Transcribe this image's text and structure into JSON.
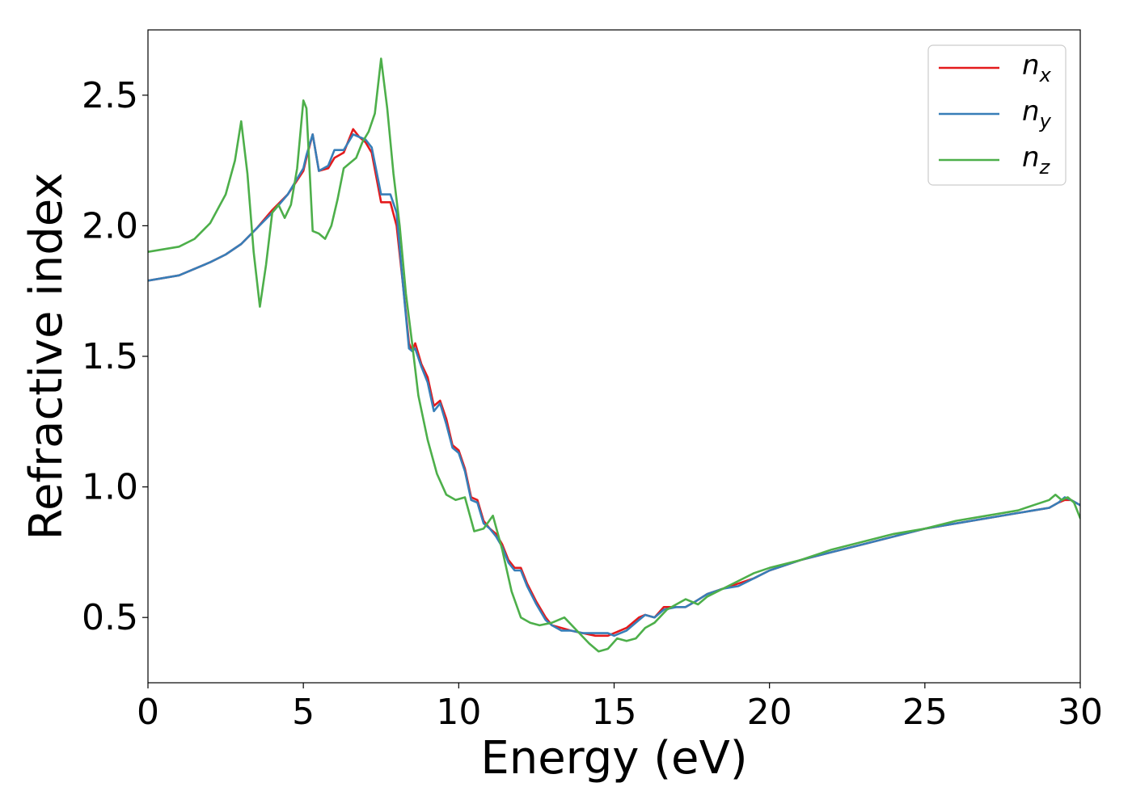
{
  "chart_data": {
    "type": "line",
    "xlabel": "Energy (eV)",
    "ylabel": "Refractive index",
    "xlim": [
      0,
      30
    ],
    "ylim": [
      0.25,
      2.75
    ],
    "xticks": [
      "0",
      "5",
      "10",
      "15",
      "20",
      "25",
      "30"
    ],
    "yticks": [
      "0.5",
      "1.0",
      "1.5",
      "2.0",
      "2.5"
    ],
    "grid": false,
    "legend_position": "upper right",
    "series": [
      {
        "name": "n_x",
        "legend": {
          "base": "n",
          "sub": "x"
        },
        "color": "#e41a1c",
        "x": [
          0,
          1,
          2,
          2.5,
          3,
          3.5,
          4,
          4.5,
          5,
          5.1,
          5.3,
          5.5,
          5.8,
          6.0,
          6.3,
          6.6,
          6.8,
          7.0,
          7.2,
          7.5,
          7.8,
          8.0,
          8.2,
          8.4,
          8.5,
          8.6,
          8.8,
          9.0,
          9.2,
          9.4,
          9.6,
          9.8,
          10.0,
          10.2,
          10.4,
          10.6,
          10.8,
          11.0,
          11.2,
          11.4,
          11.6,
          11.8,
          12.0,
          12.2,
          12.5,
          12.8,
          13.0,
          13.3,
          13.6,
          14.0,
          14.4,
          14.8,
          15.0,
          15.4,
          15.8,
          16.0,
          16.3,
          16.6,
          17.0,
          17.3,
          17.6,
          18.0,
          18.5,
          19.0,
          19.5,
          20.0,
          21.0,
          22.0,
          23.0,
          24.0,
          25.0,
          26.0,
          27.0,
          28.0,
          28.5,
          29.0,
          29.3,
          29.5,
          29.7,
          30.0
        ],
        "y": [
          1.79,
          1.81,
          1.86,
          1.89,
          1.93,
          1.99,
          2.06,
          2.12,
          2.21,
          2.26,
          2.35,
          2.21,
          2.22,
          2.26,
          2.28,
          2.37,
          2.34,
          2.32,
          2.28,
          2.09,
          2.09,
          2.0,
          1.78,
          1.55,
          1.52,
          1.55,
          1.47,
          1.42,
          1.31,
          1.33,
          1.26,
          1.16,
          1.14,
          1.07,
          0.96,
          0.95,
          0.87,
          0.84,
          0.82,
          0.78,
          0.72,
          0.69,
          0.69,
          0.63,
          0.56,
          0.5,
          0.47,
          0.46,
          0.45,
          0.44,
          0.43,
          0.43,
          0.44,
          0.46,
          0.5,
          0.51,
          0.5,
          0.54,
          0.54,
          0.54,
          0.56,
          0.59,
          0.61,
          0.63,
          0.65,
          0.68,
          0.72,
          0.75,
          0.78,
          0.81,
          0.84,
          0.86,
          0.88,
          0.9,
          0.91,
          0.92,
          0.94,
          0.95,
          0.95,
          0.93
        ]
      },
      {
        "name": "n_y",
        "legend": {
          "base": "n",
          "sub": "y"
        },
        "color": "#377eb8",
        "x": [
          0,
          1,
          2,
          2.5,
          3,
          3.5,
          4,
          4.5,
          5,
          5.1,
          5.3,
          5.5,
          5.8,
          6.0,
          6.3,
          6.6,
          6.8,
          7.0,
          7.2,
          7.5,
          7.8,
          8.0,
          8.2,
          8.4,
          8.5,
          8.6,
          8.8,
          9.0,
          9.2,
          9.4,
          9.6,
          9.8,
          10.0,
          10.2,
          10.4,
          10.6,
          10.8,
          11.0,
          11.2,
          11.4,
          11.6,
          11.8,
          12.0,
          12.2,
          12.5,
          12.8,
          13.0,
          13.3,
          13.6,
          14.0,
          14.4,
          14.8,
          15.0,
          15.4,
          15.8,
          16.0,
          16.3,
          16.6,
          17.0,
          17.3,
          17.6,
          18.0,
          18.5,
          19.0,
          19.5,
          20.0,
          21.0,
          22.0,
          23.0,
          24.0,
          25.0,
          26.0,
          27.0,
          28.0,
          28.5,
          29.0,
          29.3,
          29.5,
          29.7,
          30.0
        ],
        "y": [
          1.79,
          1.81,
          1.86,
          1.89,
          1.93,
          1.99,
          2.05,
          2.12,
          2.22,
          2.27,
          2.35,
          2.21,
          2.23,
          2.29,
          2.29,
          2.35,
          2.34,
          2.33,
          2.3,
          2.12,
          2.12,
          2.05,
          1.78,
          1.53,
          1.52,
          1.53,
          1.46,
          1.4,
          1.29,
          1.32,
          1.24,
          1.15,
          1.13,
          1.06,
          0.95,
          0.94,
          0.86,
          0.84,
          0.81,
          0.77,
          0.71,
          0.68,
          0.68,
          0.62,
          0.55,
          0.49,
          0.47,
          0.45,
          0.45,
          0.44,
          0.44,
          0.44,
          0.43,
          0.45,
          0.49,
          0.51,
          0.5,
          0.53,
          0.54,
          0.54,
          0.56,
          0.59,
          0.61,
          0.62,
          0.65,
          0.68,
          0.72,
          0.75,
          0.78,
          0.81,
          0.84,
          0.86,
          0.88,
          0.9,
          0.91,
          0.92,
          0.94,
          0.96,
          0.95,
          0.93
        ]
      },
      {
        "name": "n_z",
        "legend": {
          "base": "n",
          "sub": "z"
        },
        "color": "#4daf4a",
        "x": [
          0,
          1,
          1.5,
          2,
          2.5,
          2.8,
          3.0,
          3.2,
          3.4,
          3.6,
          3.8,
          4.0,
          4.2,
          4.4,
          4.6,
          4.8,
          5.0,
          5.1,
          5.3,
          5.5,
          5.7,
          5.9,
          6.1,
          6.3,
          6.5,
          6.7,
          6.9,
          7.1,
          7.3,
          7.5,
          7.7,
          7.9,
          8.1,
          8.3,
          8.5,
          8.7,
          9.0,
          9.3,
          9.6,
          9.9,
          10.2,
          10.5,
          10.8,
          11.1,
          11.4,
          11.7,
          12.0,
          12.3,
          12.6,
          13.0,
          13.4,
          13.8,
          14.2,
          14.5,
          14.8,
          15.1,
          15.4,
          15.7,
          16.0,
          16.3,
          16.7,
          17.0,
          17.3,
          17.7,
          18.0,
          18.5,
          19.0,
          19.5,
          20.0,
          21.0,
          22.0,
          23.0,
          24.0,
          25.0,
          26.0,
          27.0,
          28.0,
          28.5,
          29.0,
          29.2,
          29.4,
          29.6,
          29.8,
          30.0
        ],
        "y": [
          1.9,
          1.92,
          1.95,
          2.01,
          2.12,
          2.25,
          2.4,
          2.2,
          1.9,
          1.69,
          1.85,
          2.05,
          2.08,
          2.03,
          2.08,
          2.22,
          2.48,
          2.45,
          1.98,
          1.97,
          1.95,
          2.0,
          2.1,
          2.22,
          2.24,
          2.26,
          2.32,
          2.36,
          2.43,
          2.64,
          2.45,
          2.2,
          2.0,
          1.74,
          1.55,
          1.35,
          1.18,
          1.05,
          0.97,
          0.95,
          0.96,
          0.83,
          0.84,
          0.89,
          0.76,
          0.6,
          0.5,
          0.48,
          0.47,
          0.48,
          0.5,
          0.45,
          0.4,
          0.37,
          0.38,
          0.42,
          0.41,
          0.42,
          0.46,
          0.48,
          0.53,
          0.55,
          0.57,
          0.55,
          0.58,
          0.61,
          0.64,
          0.67,
          0.69,
          0.72,
          0.76,
          0.79,
          0.82,
          0.84,
          0.87,
          0.89,
          0.91,
          0.93,
          0.95,
          0.97,
          0.95,
          0.96,
          0.94,
          0.88
        ]
      }
    ]
  }
}
